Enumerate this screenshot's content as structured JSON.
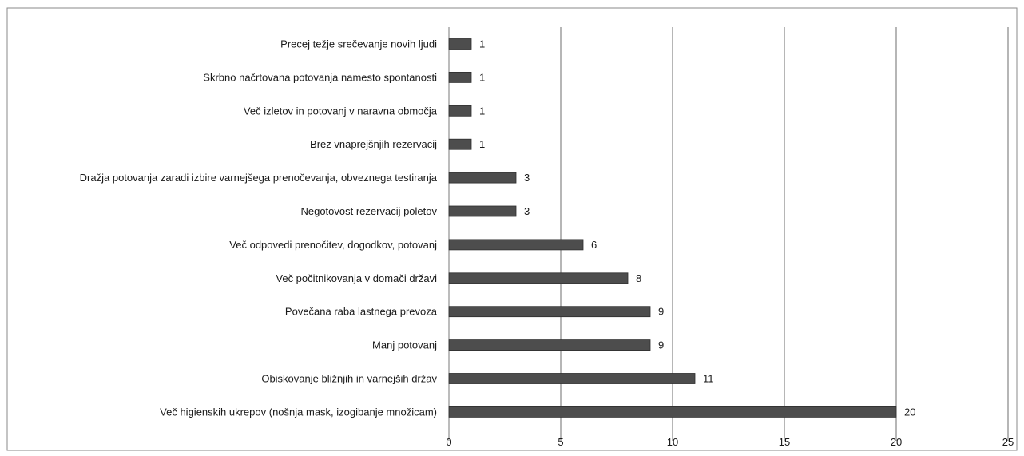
{
  "chart_data": {
    "type": "bar",
    "orientation": "horizontal",
    "title": "",
    "xlabel": "",
    "ylabel": "",
    "xlim": [
      0,
      25
    ],
    "x_ticks": [
      0,
      5,
      10,
      15,
      20,
      25
    ],
    "grid": "vertical",
    "legend": "none",
    "bar_color": "#4d4d4d",
    "categories": [
      "Precej težje srečevanje novih ljudi",
      "Skrbno načrtovana potovanja namesto spontanosti",
      "Več izletov in potovanj v naravna območja",
      "Brez vnaprejšnjih rezervacij",
      "Dražja potovanja zaradi izbire varnejšega prenočevanja, obveznega testiranja",
      "Negotovost rezervacij poletov",
      "Več odpovedi prenočitev, dogodkov, potovanj",
      "Več počitnikovanja v domači državi",
      "Povečana raba lastnega prevoza",
      "Manj potovanj",
      "Obiskovanje bližnjih in varnejših držav",
      "Več higienskih ukrepov (nošnja mask, izogibanje množicam)"
    ],
    "values": [
      1,
      1,
      1,
      1,
      3,
      3,
      6,
      8,
      9,
      9,
      11,
      20
    ]
  }
}
